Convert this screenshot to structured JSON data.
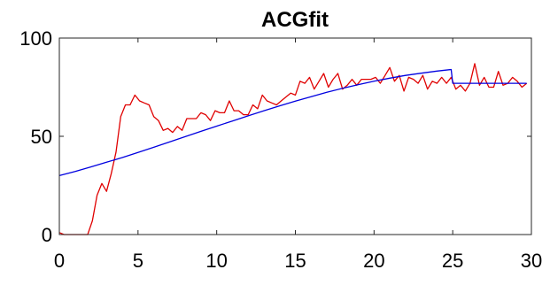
{
  "chart_data": {
    "type": "line",
    "title": "ACGfit",
    "xlabel": "",
    "ylabel": "",
    "xlim": [
      0,
      30
    ],
    "ylim": [
      0,
      100
    ],
    "xticks": [
      0,
      5,
      10,
      15,
      20,
      25,
      30
    ],
    "yticks": [
      0,
      50,
      100
    ],
    "xtick_labels": [
      "0",
      "5",
      "10",
      "15",
      "20",
      "25",
      "30"
    ],
    "ytick_labels": [
      "0",
      "50",
      "100"
    ],
    "grid": false,
    "legend": false,
    "series": [
      {
        "color": "#e00000",
        "x": [
          0,
          0.3,
          0.6,
          0.9,
          1.2,
          1.5,
          1.8,
          2.1,
          2.4,
          2.7,
          3.0,
          3.3,
          3.6,
          3.9,
          4.2,
          4.5,
          4.8,
          5.1,
          5.4,
          5.7,
          6.0,
          6.3,
          6.6,
          6.9,
          7.2,
          7.5,
          7.8,
          8.1,
          8.4,
          8.7,
          9.0,
          9.3,
          9.6,
          9.9,
          10.2,
          10.5,
          10.8,
          11.1,
          11.4,
          11.7,
          12.0,
          12.3,
          12.6,
          12.9,
          13.2,
          13.5,
          13.8,
          14.1,
          14.4,
          14.7,
          15.0,
          15.3,
          15.6,
          15.9,
          16.2,
          16.5,
          16.8,
          17.1,
          17.4,
          17.7,
          18.0,
          18.3,
          18.6,
          18.9,
          19.2,
          19.5,
          19.8,
          20.1,
          20.4,
          20.7,
          21.0,
          21.3,
          21.6,
          21.9,
          22.2,
          22.5,
          22.8,
          23.1,
          23.4,
          23.7,
          24.0,
          24.3,
          24.6,
          24.9,
          25.2,
          25.5,
          25.8,
          26.1,
          26.4,
          26.7,
          27.0,
          27.3,
          27.6,
          27.9,
          28.2,
          28.5,
          28.8,
          29.1,
          29.4,
          29.7
        ],
        "values": [
          1,
          0,
          0,
          0,
          0,
          0,
          0,
          7,
          20,
          26,
          22,
          31,
          42,
          60,
          66,
          66,
          71,
          68,
          67,
          66,
          60,
          58,
          53,
          54,
          52,
          55,
          53,
          59,
          59,
          59,
          62,
          61,
          58,
          63,
          62,
          62,
          68,
          63,
          63,
          61,
          61,
          66,
          64,
          71,
          68,
          67,
          66,
          68,
          70,
          72,
          71,
          78,
          77,
          80,
          74,
          78,
          82,
          75,
          79,
          82,
          74,
          76,
          79,
          76,
          79,
          79,
          79,
          80,
          77,
          81,
          85,
          78,
          81,
          73,
          80,
          79,
          77,
          81,
          74,
          78,
          77,
          80,
          77,
          80,
          74,
          76,
          73,
          77,
          87,
          76,
          80,
          75,
          75,
          83,
          76,
          77,
          80,
          78,
          75,
          77
        ]
      },
      {
        "color": "#0000e0",
        "x": [
          0,
          1,
          2,
          3,
          4,
          5,
          6,
          7,
          8,
          9,
          10,
          11,
          12,
          13,
          14,
          15,
          16,
          17,
          18,
          19,
          20,
          21,
          22,
          23,
          24,
          24.9,
          25.0,
          26,
          27,
          28,
          29,
          29.7
        ],
        "values": [
          30,
          32.1,
          34.4,
          36.8,
          39.2,
          41.8,
          44.4,
          47.1,
          49.8,
          52.5,
          55.2,
          57.8,
          60.4,
          63.0,
          65.5,
          67.9,
          70.2,
          72.4,
          74.4,
          76.3,
          78.0,
          79.6,
          81.0,
          82.1,
          83.2,
          84.0,
          77,
          77,
          77,
          77,
          77,
          77
        ]
      }
    ]
  }
}
